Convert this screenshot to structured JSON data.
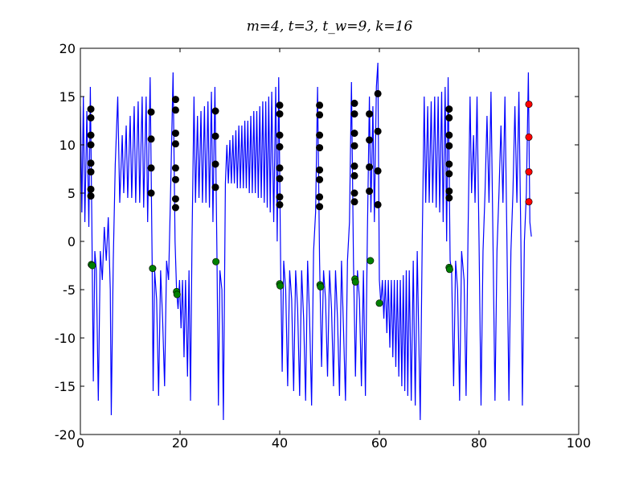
{
  "chart_data": {
    "type": "line",
    "title": "m=4, t=3, t_w=9, k=16",
    "xlim": [
      0,
      100
    ],
    "ylim": [
      -20,
      20
    ],
    "xticks": [
      0,
      20,
      40,
      60,
      80,
      100
    ],
    "yticks": [
      -20,
      -15,
      -10,
      -5,
      0,
      5,
      10,
      15,
      20
    ],
    "grid": false,
    "series": [
      {
        "type": "line",
        "color": "#0000ff",
        "x": [
          0,
          0.3,
          0.6,
          0.9,
          1.3,
          1.7,
          2.0,
          2.3,
          2.6,
          2.9,
          3.2,
          3.6,
          4.0,
          4.4,
          4.8,
          5.2,
          5.6,
          6.0,
          6.2,
          6.6,
          7.0,
          7.5,
          7.9,
          8.4,
          8.7,
          9.2,
          9.5,
          10.0,
          10.3,
          10.8,
          11.1,
          11.6,
          11.9,
          12.4,
          12.7,
          13.2,
          13.5,
          14.0,
          14.4,
          14.6,
          14.9,
          15.3,
          15.7,
          16.1,
          16.5,
          16.9,
          17.3,
          17.7,
          18.1,
          18.6,
          19.0,
          19.3,
          19.6,
          19.9,
          20.2,
          20.5,
          20.8,
          21.1,
          21.5,
          21.8,
          22.1,
          22.4,
          22.8,
          23.1,
          23.5,
          23.8,
          24.2,
          24.5,
          24.9,
          25.2,
          25.6,
          25.9,
          26.3,
          26.6,
          27.0,
          27.4,
          27.7,
          28.0,
          28.4,
          28.7,
          29.1,
          29.4,
          29.7,
          30.0,
          30.3,
          30.6,
          30.9,
          31.2,
          31.5,
          31.8,
          32.1,
          32.4,
          32.7,
          33.0,
          33.3,
          33.6,
          33.9,
          34.2,
          34.5,
          34.8,
          35.1,
          35.4,
          35.7,
          36.0,
          36.3,
          36.6,
          36.9,
          37.2,
          37.5,
          37.8,
          38.1,
          38.4,
          38.8,
          39.2,
          39.5,
          39.8,
          40.2,
          40.5,
          40.8,
          41.2,
          41.6,
          42.0,
          42.4,
          42.8,
          43.2,
          43.6,
          44.0,
          44.4,
          44.8,
          45.2,
          45.6,
          46.0,
          46.4,
          46.8,
          47.2,
          47.6,
          48.0,
          48.4,
          48.8,
          49.2,
          49.6,
          50.0,
          50.4,
          50.8,
          51.2,
          51.6,
          52.0,
          52.4,
          52.8,
          53.2,
          53.6,
          54.0,
          54.4,
          54.8,
          55.2,
          55.6,
          56.0,
          56.4,
          56.8,
          57.2,
          57.6,
          58.0,
          58.3,
          58.7,
          59.0,
          59.4,
          59.7,
          60.0,
          60.3,
          60.6,
          60.9,
          61.2,
          61.5,
          61.8,
          62.1,
          62.4,
          62.7,
          63.0,
          63.3,
          63.6,
          63.9,
          64.2,
          64.5,
          64.8,
          65.1,
          65.4,
          65.7,
          66.0,
          66.4,
          66.8,
          67.2,
          67.6,
          68.2,
          68.6,
          69.0,
          69.3,
          69.7,
          70.0,
          70.4,
          70.7,
          71.1,
          71.4,
          71.8,
          72.1,
          72.5,
          72.8,
          73.2,
          73.5,
          73.8,
          74.2,
          74.5,
          74.9,
          75.3,
          75.7,
          76.1,
          76.5,
          77.0,
          77.4,
          77.8,
          78.2,
          78.5,
          78.9,
          79.2,
          79.6,
          80.0,
          80.4,
          80.8,
          81.2,
          81.6,
          82.0,
          82.4,
          82.8,
          83.2,
          83.6,
          84.0,
          84.4,
          84.8,
          85.2,
          85.6,
          86.0,
          86.4,
          86.8,
          87.2,
          87.6,
          88.0,
          88.4,
          88.7,
          89.1,
          89.5,
          89.9,
          90.2,
          90.5
        ],
        "values": [
          14,
          3,
          15,
          2,
          13.5,
          1.5,
          16,
          2,
          -14.5,
          -1,
          -3,
          -16.5,
          -1,
          -4,
          1.5,
          -2,
          2.5,
          -5,
          -18,
          -2,
          8,
          15,
          4,
          11,
          5,
          12,
          4.5,
          13,
          4.5,
          14,
          4,
          14.5,
          4,
          15,
          3.5,
          15,
          2,
          17,
          -2,
          -15.5,
          -3,
          -6,
          -16,
          -3,
          -8,
          -15,
          -2,
          -4,
          5,
          17.5,
          0,
          -5,
          -7,
          -4,
          -9,
          -4,
          -12,
          -4,
          -14,
          -3,
          -16.5,
          0,
          15,
          4,
          13,
          4.5,
          13.5,
          4,
          14,
          4,
          14.5,
          3.5,
          15.5,
          2,
          16,
          -1,
          -17,
          -3,
          -5,
          -18.5,
          6,
          10,
          6,
          10.5,
          6,
          11,
          6,
          11.5,
          5.5,
          12,
          5.5,
          12,
          5.5,
          12.5,
          5.5,
          12.5,
          5,
          13,
          5,
          13.5,
          5,
          13.5,
          4.5,
          14,
          4.5,
          14.5,
          4,
          14.5,
          3.5,
          15,
          3,
          15.5,
          2,
          16,
          0,
          17,
          -3,
          -13.5,
          -2,
          -5,
          -15,
          -3,
          -6,
          -15.5,
          -3,
          -7,
          -16,
          -3,
          -8,
          -16.5,
          -2,
          -8,
          -17,
          -1,
          3,
          16,
          -2,
          -13,
          -3,
          -6,
          -14,
          -3,
          -7,
          -15,
          -3,
          -8,
          -16,
          -2,
          -9,
          -16.5,
          -2,
          2,
          16.5,
          -2,
          -14,
          -3,
          -6,
          -15,
          -3,
          -16,
          1,
          15,
          3,
          14,
          2,
          16,
          18.5,
          -4,
          -6.5,
          -4,
          -8,
          -4,
          -9.5,
          -4,
          -11,
          -4,
          -12,
          -4,
          -13,
          -4,
          -14,
          -4,
          -15,
          -3.5,
          -15.5,
          -3,
          -16,
          -3,
          -16.5,
          -2,
          -17,
          -1,
          -18.5,
          0,
          15,
          4,
          14,
          4,
          14.5,
          4,
          15,
          3.5,
          15,
          3,
          15.5,
          2,
          16,
          0,
          17,
          -2,
          -3,
          -15,
          -2,
          -5,
          -16.5,
          -1,
          -4,
          -16,
          1,
          15,
          5,
          11,
          4,
          15,
          0,
          -17,
          -1,
          5,
          13,
          4,
          15.5,
          0,
          -16.5,
          -1,
          5,
          12,
          4,
          15,
          0,
          -16.5,
          -1,
          5,
          14,
          4,
          15.5,
          0,
          -17,
          0,
          5,
          17.5,
          2,
          0.5
        ]
      },
      {
        "type": "scatter",
        "color": "#000000",
        "x": [
          2.1,
          2.1,
          2.1,
          2.1,
          2.1,
          2.1,
          2.1,
          2.1,
          14.2,
          14.2,
          14.2,
          14.2,
          19.1,
          19.1,
          19.1,
          19.1,
          19.1,
          19.1,
          19.1,
          19.1,
          27.1,
          27.1,
          27.1,
          27.1,
          40.0,
          40.0,
          40.0,
          40.0,
          40.0,
          40.0,
          40.0,
          40.0,
          48.0,
          48.0,
          48.0,
          48.0,
          48.0,
          48.0,
          48.0,
          48.0,
          55.0,
          55.0,
          55.0,
          55.0,
          55.0,
          55.0,
          55.0,
          55.0,
          58.0,
          58.0,
          58.0,
          58.0,
          59.7,
          59.7,
          59.7,
          59.7,
          74.0,
          74.0,
          74.0,
          74.0,
          74.0,
          74.0,
          74.0,
          74.0
        ],
        "values": [
          13.7,
          12.8,
          11.0,
          10.0,
          8.1,
          7.2,
          5.4,
          4.7,
          13.4,
          10.6,
          7.6,
          5.0,
          14.7,
          13.6,
          11.2,
          10.1,
          7.6,
          6.4,
          4.4,
          3.5,
          13.5,
          10.9,
          8.0,
          5.6,
          14.1,
          13.2,
          11.0,
          9.8,
          7.6,
          6.5,
          4.6,
          3.8,
          14.1,
          13.1,
          11.0,
          9.7,
          7.4,
          6.4,
          4.6,
          3.6,
          14.3,
          13.2,
          11.2,
          9.9,
          7.8,
          6.8,
          5.0,
          4.1,
          13.2,
          10.5,
          7.7,
          5.2,
          15.3,
          11.4,
          7.3,
          3.8,
          13.7,
          12.8,
          11.0,
          9.9,
          8.0,
          7.0,
          5.2,
          4.5
        ]
      },
      {
        "type": "scatter",
        "color": "#008000",
        "x": [
          2.2,
          2.4,
          14.5,
          19.3,
          19.4,
          27.2,
          40.0,
          40.1,
          48.1,
          48.2,
          55.1,
          55.2,
          58.2,
          60.0,
          74.0,
          74.1
        ],
        "values": [
          -2.4,
          -2.5,
          -2.8,
          -5.2,
          -5.5,
          -2.1,
          -4.4,
          -4.6,
          -4.5,
          -4.7,
          -3.9,
          -4.2,
          -2.0,
          -6.4,
          -2.7,
          -2.9
        ]
      },
      {
        "type": "scatter",
        "color": "#ff0000",
        "x": [
          90.0,
          90.0,
          90.0,
          90.0
        ],
        "values": [
          14.2,
          10.8,
          7.2,
          4.1
        ]
      }
    ]
  }
}
